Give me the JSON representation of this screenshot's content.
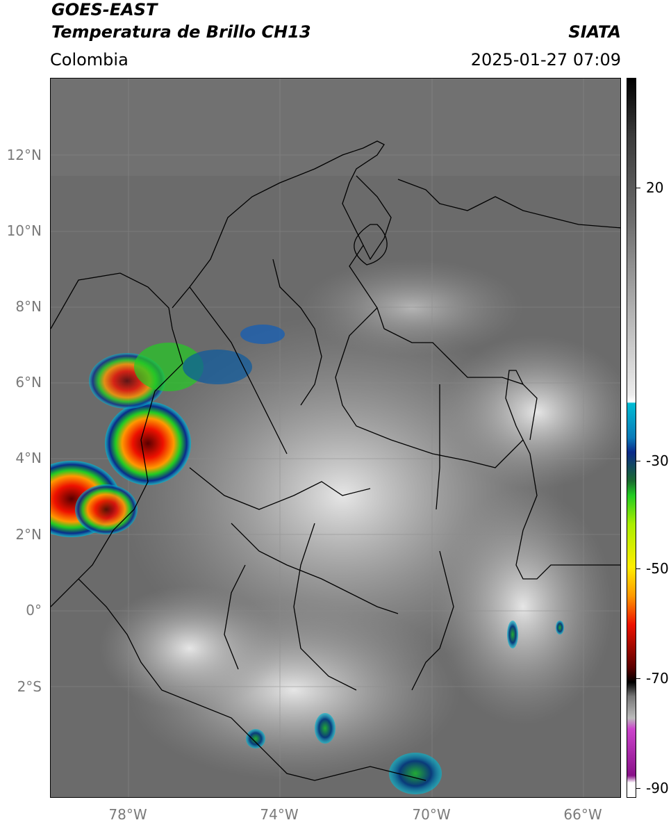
{
  "header": {
    "satellite": "GOES-EAST",
    "product": "Temperatura de Brillo CH13",
    "region": "Colombia",
    "agency": "SIATA",
    "datetime": "2025-01-27 07:09"
  },
  "map": {
    "lat_labels": [
      "12°N",
      "10°N",
      "8°N",
      "6°N",
      "4°N",
      "2°N",
      "0°",
      "2°S"
    ],
    "lon_labels": [
      "78°W",
      "74°W",
      "70°W",
      "66°W"
    ]
  },
  "colorbar": {
    "ticks": [
      "20",
      "-30",
      "-50",
      "-70",
      "-90"
    ],
    "colors": {
      "warm_gray": "#6e6e6e",
      "cold_white": "#e6e6e6",
      "cyan": "#00bcd4",
      "blue": "#0a2a8a",
      "green": "#22cc22",
      "yellow": "#ffee00",
      "red": "#ee1100",
      "darkred": "#5a0000",
      "magenta": "#cc44cc"
    }
  }
}
